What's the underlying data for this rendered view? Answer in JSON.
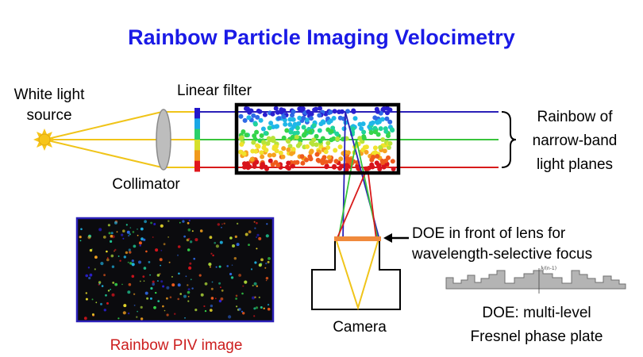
{
  "title": "Rainbow Particle Imaging Velocimetry",
  "labels": {
    "white_light_source_line1": "White light",
    "white_light_source_line2": "source",
    "linear_filter": "Linear filter",
    "collimator": "Collimator",
    "rainbow_planes_line1": "Rainbow of",
    "rainbow_planes_line2": "narrow-band",
    "rainbow_planes_line3": "light planes",
    "doe_front_line1": "DOE in front of lens for",
    "doe_front_line2": "wavelength-selective focus",
    "camera": "Camera",
    "piv_image": "Rainbow PIV image",
    "doe_plate_line1": "DOE: multi-level",
    "doe_plate_line2": "Fresnel phase plate",
    "doe_small_label": "λ/(n-1)"
  },
  "colors": {
    "title": "#1a1ae6",
    "piv_caption": "#cc1f1f",
    "beam_top": "#2b20b8",
    "beam_mid": "#39c43c",
    "beam_bottom": "#d81b1b",
    "source_rays": "#f0c419",
    "doe_bar": "#f08a3c"
  },
  "filter_bands": [
    "#2216c9",
    "#1aa7e6",
    "#2bd06a",
    "#d6e02a",
    "#f19a1c",
    "#e0161b"
  ],
  "particle_colors": [
    "#2a1fd0",
    "#2f6ae6",
    "#1fb7e8",
    "#21d39b",
    "#35d44a",
    "#b7e33a",
    "#f1e22c",
    "#f6a21f",
    "#ef5a1c",
    "#d8141c"
  ]
}
